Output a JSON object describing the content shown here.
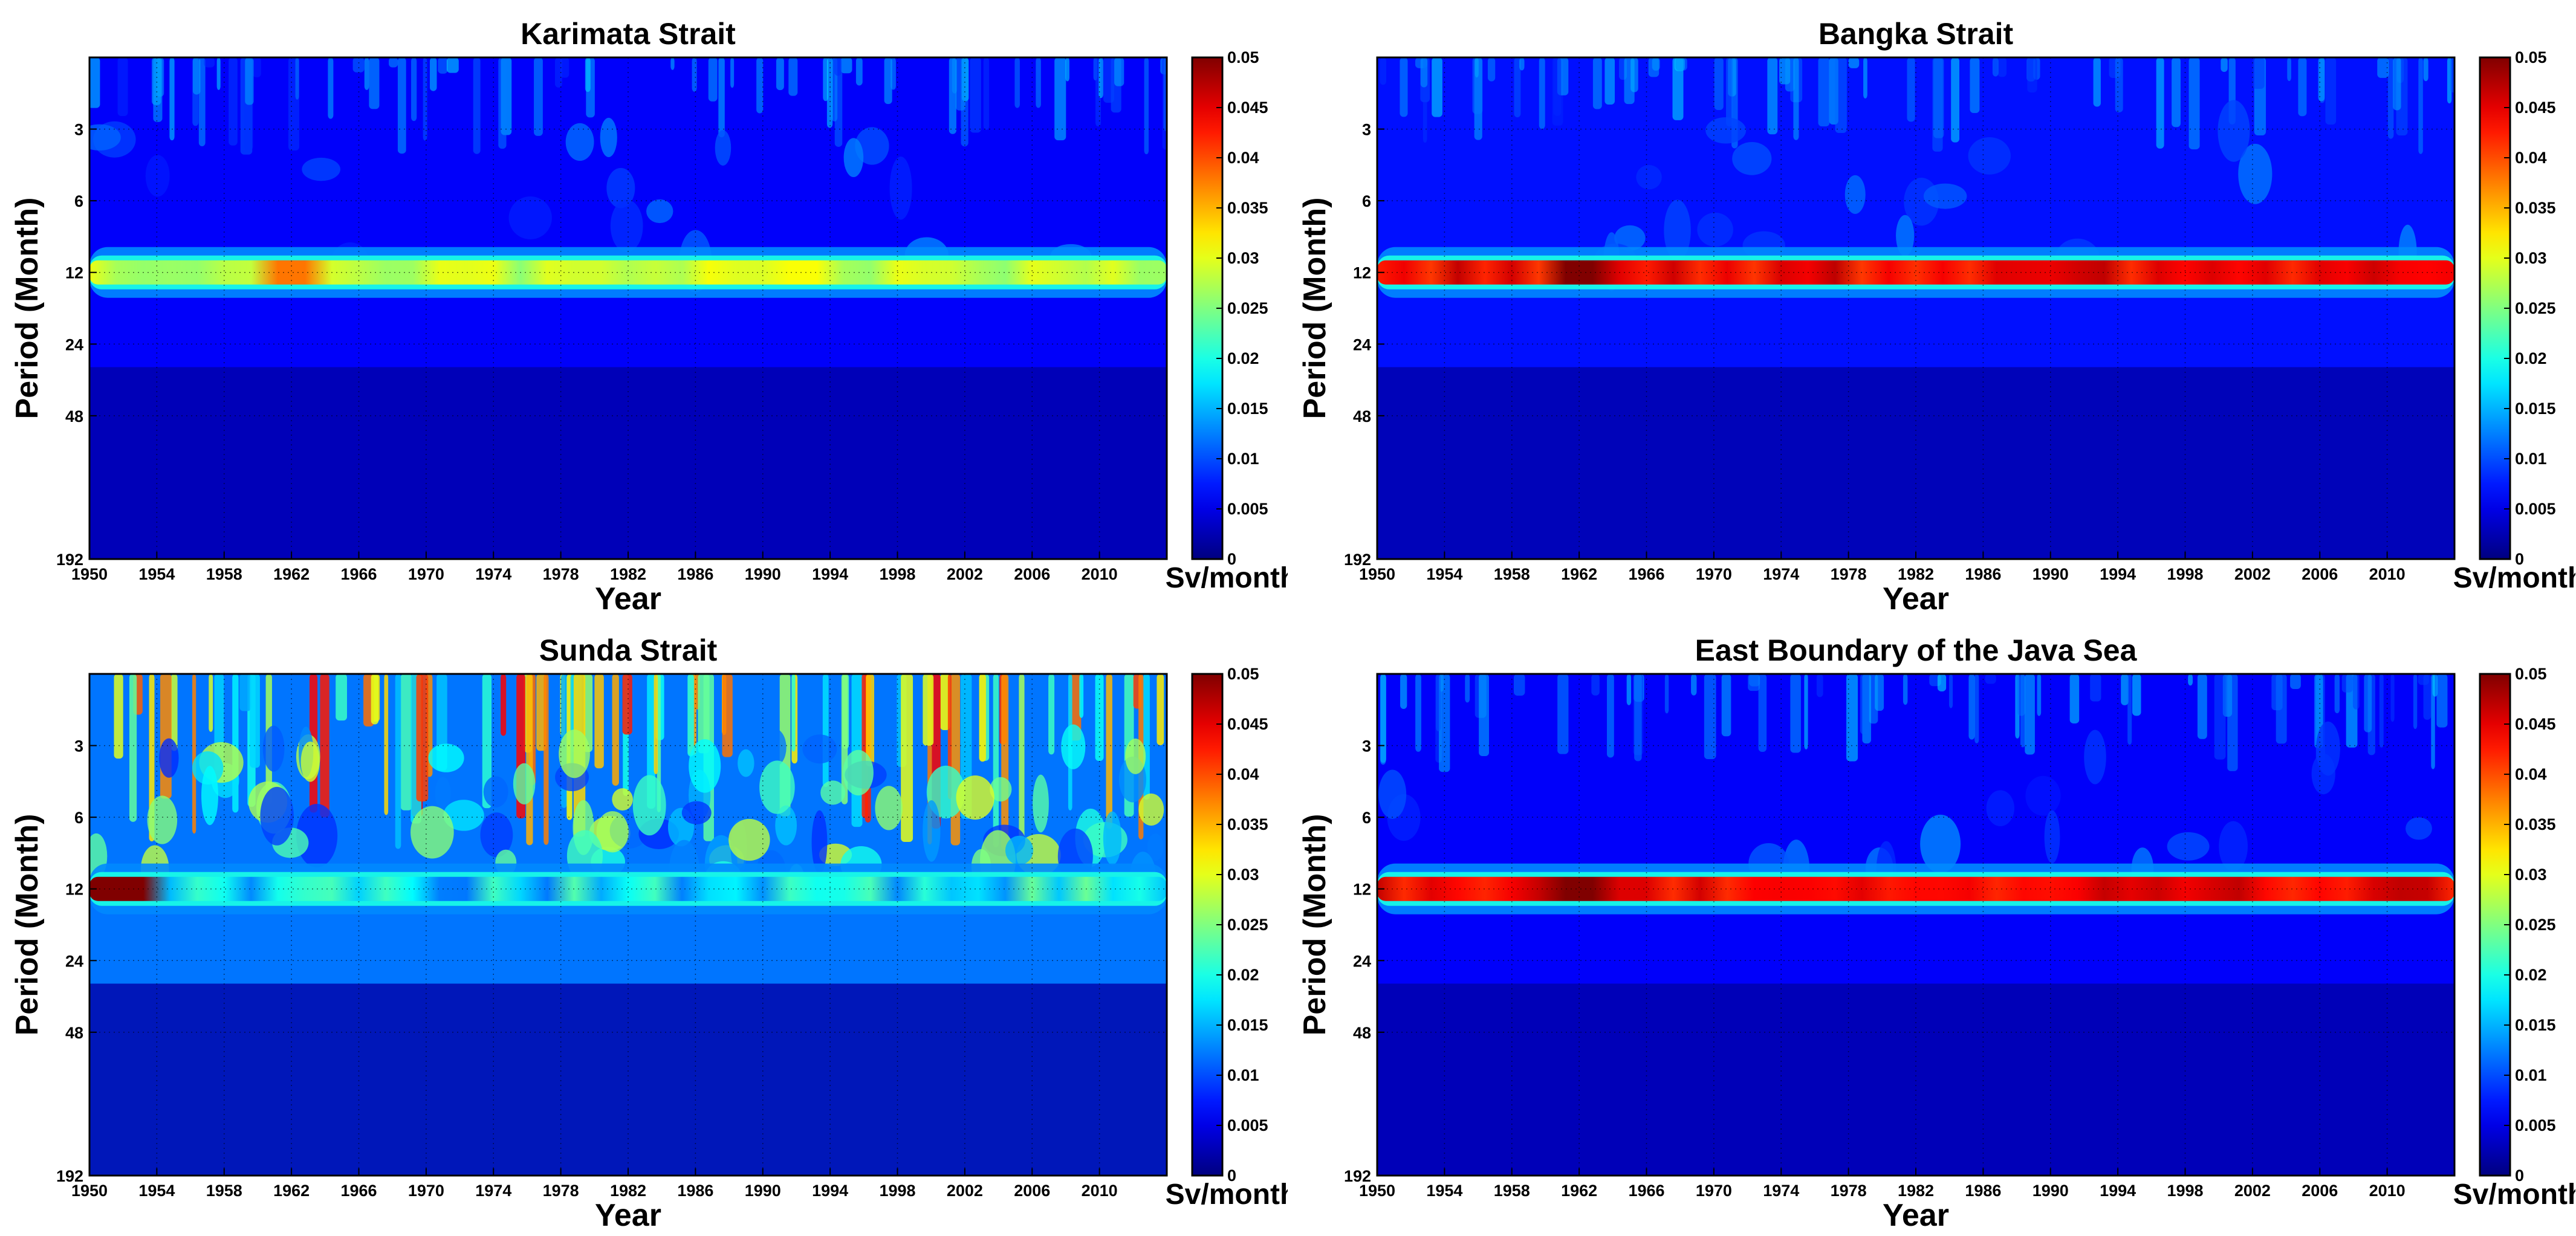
{
  "common": {
    "xlabel": "Year",
    "ylabel": "Period (Month)",
    "colorbar_unit": "Sv/month"
  },
  "chart_data": [
    {
      "type": "heatmap",
      "title": "Karimata Strait",
      "xlabel": "Year",
      "ylabel": "Period (Month)",
      "x_ticks": [
        1950,
        1954,
        1958,
        1962,
        1966,
        1970,
        1974,
        1978,
        1982,
        1986,
        1990,
        1994,
        1998,
        2002,
        2006,
        2010
      ],
      "xlim": [
        1950,
        2014
      ],
      "y_ticks": [
        3,
        6,
        12,
        24,
        48,
        192
      ],
      "ylim_months": [
        1.5,
        192
      ],
      "colorbar": {
        "min": 0,
        "max": 0.05,
        "ticks": [
          0,
          0.005,
          0.01,
          0.015,
          0.02,
          0.025,
          0.03,
          0.035,
          0.04,
          0.045,
          0.05
        ],
        "tick_labels": [
          "0",
          "0.005",
          "0.01",
          "0.015",
          "0.02",
          "0.025",
          "0.03",
          "0.035",
          "0.04",
          "0.045",
          "0.05"
        ],
        "unit": "Sv/month"
      },
      "annual_band": {
        "period_months": 12,
        "peak_value": 0.038,
        "typical_value": 0.028,
        "peak_years": [
          1961,
          1963
        ]
      },
      "background_value": 0.006,
      "grid": "dotted"
    },
    {
      "type": "heatmap",
      "title": "Bangka Strait",
      "xlabel": "Year",
      "ylabel": "Period (Month)",
      "x_ticks": [
        1950,
        1954,
        1958,
        1962,
        1966,
        1970,
        1974,
        1978,
        1982,
        1986,
        1990,
        1994,
        1998,
        2002,
        2006,
        2010
      ],
      "xlim": [
        1950,
        2014
      ],
      "y_ticks": [
        3,
        6,
        12,
        24,
        48,
        192
      ],
      "ylim_months": [
        1.5,
        192
      ],
      "colorbar": {
        "min": 0,
        "max": 0.05,
        "ticks": [
          0,
          0.005,
          0.01,
          0.015,
          0.02,
          0.025,
          0.03,
          0.035,
          0.04,
          0.045,
          0.05
        ],
        "tick_labels": [
          "0",
          "0.005",
          "0.01",
          "0.015",
          "0.02",
          "0.025",
          "0.03",
          "0.035",
          "0.04",
          "0.045",
          "0.05"
        ],
        "unit": "Sv/month"
      },
      "annual_band": {
        "period_months": 12,
        "peak_value": 0.05,
        "typical_value": 0.044,
        "peak_years": [
          1961,
          1963
        ]
      },
      "background_value": 0.007,
      "grid": "dotted"
    },
    {
      "type": "heatmap",
      "title": "Sunda Strait",
      "xlabel": "Year",
      "ylabel": "Period (Month)",
      "x_ticks": [
        1950,
        1954,
        1958,
        1962,
        1966,
        1970,
        1974,
        1978,
        1982,
        1986,
        1990,
        1994,
        1998,
        2002,
        2006,
        2010
      ],
      "xlim": [
        1950,
        2014
      ],
      "y_ticks": [
        3,
        6,
        12,
        24,
        48,
        192
      ],
      "ylim_months": [
        1.5,
        192
      ],
      "colorbar": {
        "min": 0,
        "max": 0.05,
        "ticks": [
          0,
          0.005,
          0.01,
          0.015,
          0.02,
          0.025,
          0.03,
          0.035,
          0.04,
          0.045,
          0.05
        ],
        "tick_labels": [
          "0",
          "0.005",
          "0.01",
          "0.015",
          "0.02",
          "0.025",
          "0.03",
          "0.035",
          "0.04",
          "0.045",
          "0.05"
        ],
        "unit": "Sv/month"
      },
      "annual_band": {
        "period_months": 12,
        "peak_value": 0.05,
        "typical_value": 0.018,
        "peak_years": [
          1951,
          1953
        ]
      },
      "background_value": 0.012,
      "grid": "dotted"
    },
    {
      "type": "heatmap",
      "title": "East Boundary of the Java Sea",
      "xlabel": "Year",
      "ylabel": "Period (Month)",
      "x_ticks": [
        1950,
        1954,
        1958,
        1962,
        1966,
        1970,
        1974,
        1978,
        1982,
        1986,
        1990,
        1994,
        1998,
        2002,
        2006,
        2010
      ],
      "xlim": [
        1950,
        2014
      ],
      "y_ticks": [
        3,
        6,
        12,
        24,
        48,
        192
      ],
      "ylim_months": [
        1.5,
        192
      ],
      "colorbar": {
        "min": 0,
        "max": 0.05,
        "ticks": [
          0,
          0.005,
          0.01,
          0.015,
          0.02,
          0.025,
          0.03,
          0.035,
          0.04,
          0.045,
          0.05
        ],
        "tick_labels": [
          "0",
          "0.005",
          "0.01",
          "0.015",
          "0.02",
          "0.025",
          "0.03",
          "0.035",
          "0.04",
          "0.045",
          "0.05"
        ],
        "unit": "Sv/month"
      },
      "annual_band": {
        "period_months": 12,
        "peak_value": 0.05,
        "typical_value": 0.044,
        "peak_years": [
          1961,
          1963
        ]
      },
      "background_value": 0.006,
      "grid": "dotted"
    }
  ]
}
